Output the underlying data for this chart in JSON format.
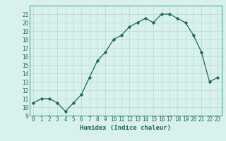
{
  "x": [
    0,
    1,
    2,
    3,
    4,
    5,
    6,
    7,
    8,
    9,
    10,
    11,
    12,
    13,
    14,
    15,
    16,
    17,
    18,
    19,
    20,
    21,
    22,
    23
  ],
  "y": [
    10.5,
    11.0,
    11.0,
    10.5,
    9.5,
    10.5,
    11.5,
    13.5,
    15.5,
    16.5,
    18.0,
    18.5,
    19.5,
    20.0,
    20.5,
    20.0,
    21.0,
    21.0,
    20.5,
    20.0,
    18.5,
    16.5,
    13.0,
    13.5
  ],
  "xlabel": "Humidex (Indice chaleur)",
  "xlim": [
    -0.5,
    23.5
  ],
  "ylim": [
    9,
    22
  ],
  "yticks": [
    9,
    10,
    11,
    12,
    13,
    14,
    15,
    16,
    17,
    18,
    19,
    20,
    21
  ],
  "xticks": [
    0,
    1,
    2,
    3,
    4,
    5,
    6,
    7,
    8,
    9,
    10,
    11,
    12,
    13,
    14,
    15,
    16,
    17,
    18,
    19,
    20,
    21,
    22,
    23
  ],
  "line_color": "#1a6b5a",
  "marker": "D",
  "marker_size": 1.8,
  "bg_color": "#d8f0ee",
  "grid_color": "#b8d8d4",
  "xlabel_fontsize": 6.5,
  "tick_fontsize": 5.5,
  "linewidth": 0.9
}
